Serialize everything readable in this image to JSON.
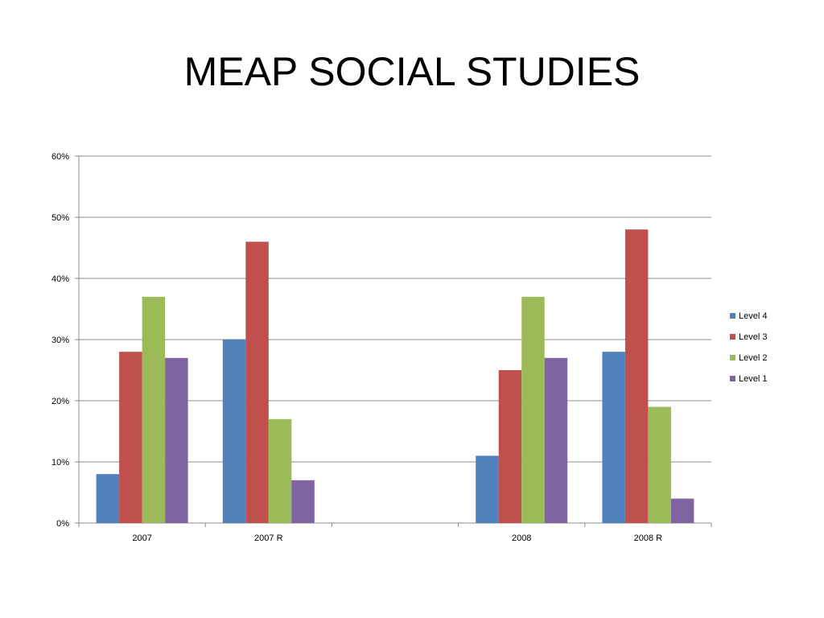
{
  "slide": {
    "title": "MEAP SOCIAL STUDIES"
  },
  "chart_data": {
    "type": "bar",
    "title": "",
    "xlabel": "",
    "ylabel": "",
    "categories": [
      "2007",
      "2007 R",
      "",
      "2008",
      "2008 R"
    ],
    "series": [
      {
        "name": "Level 4",
        "color": "#4F81BD",
        "values": [
          8,
          30,
          null,
          11,
          28
        ]
      },
      {
        "name": "Level 3",
        "color": "#C0504D",
        "values": [
          28,
          46,
          null,
          25,
          48
        ]
      },
      {
        "name": "Level 2",
        "color": "#9BBB59",
        "values": [
          37,
          17,
          null,
          37,
          19
        ]
      },
      {
        "name": "Level 1",
        "color": "#8064A2",
        "values": [
          27,
          7,
          null,
          27,
          4
        ]
      }
    ],
    "ylim": [
      0,
      60
    ],
    "yticks": [
      "0%",
      "10%",
      "20%",
      "30%",
      "40%",
      "50%",
      "60%"
    ],
    "y_unit": "%",
    "grid": true,
    "legend_position": "right"
  }
}
